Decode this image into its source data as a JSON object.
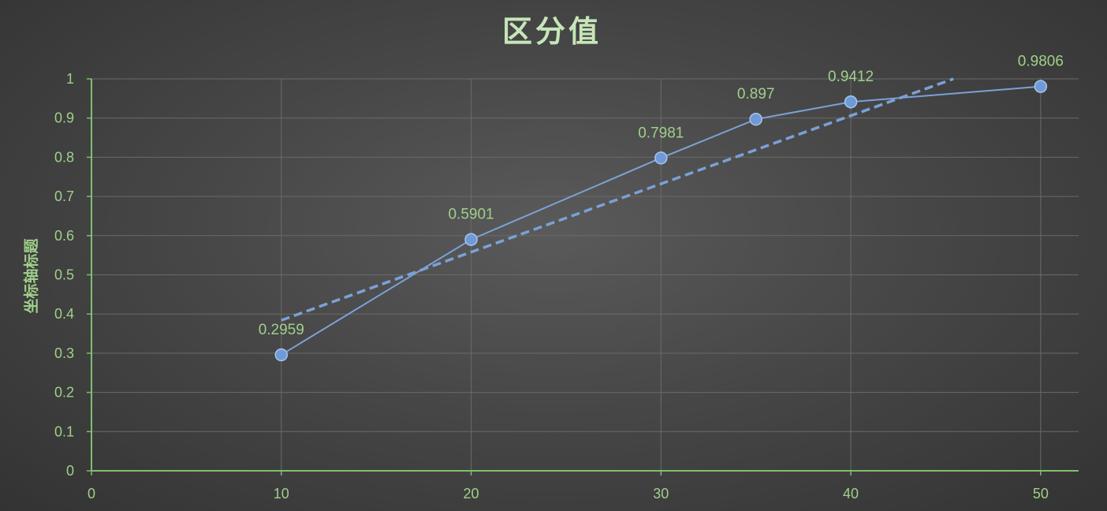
{
  "chart_data": {
    "type": "scatter",
    "title": "区分值",
    "xlabel": "",
    "ylabel": "坐标轴标题",
    "xlim": [
      0,
      52
    ],
    "ylim": [
      0,
      1
    ],
    "x_ticks": [
      0,
      10,
      20,
      30,
      40,
      50
    ],
    "y_ticks": [
      0,
      0.1,
      0.2,
      0.3,
      0.4,
      0.5,
      0.6,
      0.7,
      0.8,
      0.9,
      1
    ],
    "x_tick_labels": [
      "0",
      "10",
      "20",
      "30",
      "40",
      "50"
    ],
    "y_tick_labels": [
      "0",
      "0.1",
      "0.2",
      "0.3",
      "0.4",
      "0.5",
      "0.6",
      "0.7",
      "0.8",
      "0.9",
      "1"
    ],
    "grid": true,
    "legend": "none",
    "series": [
      {
        "x": [
          10,
          20,
          30,
          35,
          40,
          50
        ],
        "y": [
          0.2959,
          0.5901,
          0.7981,
          0.897,
          0.9412,
          0.9806
        ],
        "labels": [
          "0.2959",
          "0.5901",
          "0.7981",
          "0.897",
          "0.9412",
          "0.9806"
        ],
        "markers": true,
        "lines": true
      }
    ],
    "trendline": {
      "type": "linear",
      "style": "dashed",
      "points": [
        [
          10,
          0.384
        ],
        [
          45.4,
          1.0
        ]
      ]
    },
    "colors": {
      "series": "#7ba1d6",
      "marker": "#6f9ad8",
      "trendline": "#7ba1d6",
      "text": "#9fd08a",
      "title": "#c6e6b8",
      "axis": "#7fc06a",
      "grid": "#6a6a6a"
    }
  }
}
